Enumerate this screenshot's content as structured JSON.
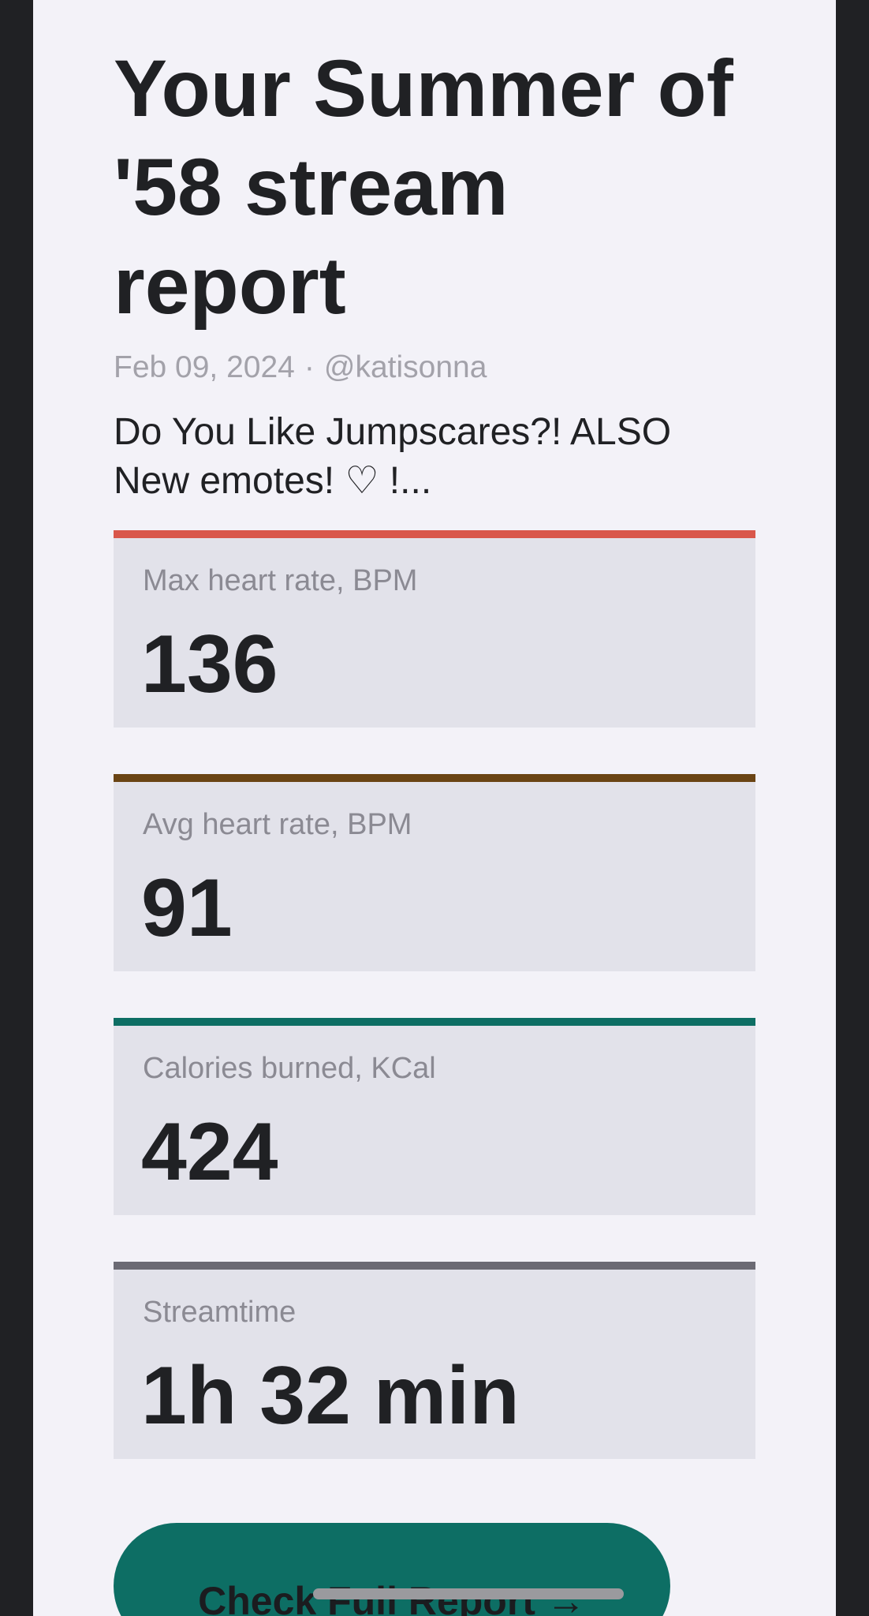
{
  "report": {
    "title": "Your Summer of '58 stream report",
    "date": "Feb 09, 2024",
    "separator": "·",
    "author": "@katisonna",
    "description": "Do You Like Jumpscares?! ALSO New emotes! ♡ !..."
  },
  "stats": [
    {
      "label": "Max heart rate, BPM",
      "value": "136",
      "accent_color": "#d9574b"
    },
    {
      "label": "Avg heart rate, BPM",
      "value": "91",
      "accent_color": "#6a4414"
    },
    {
      "label": "Calories burned, KCal",
      "value": "424",
      "accent_color": "#0d6e64"
    },
    {
      "label": "Streamtime",
      "value": "1h 32 min",
      "accent_color": "#6b6a74"
    }
  ],
  "cta": {
    "label": "Check Full Report →",
    "color": "#0d6e64"
  },
  "colors": {
    "frame": "#202124",
    "page_background": "#f3f2f8",
    "card_background": "#e2e2ea"
  }
}
